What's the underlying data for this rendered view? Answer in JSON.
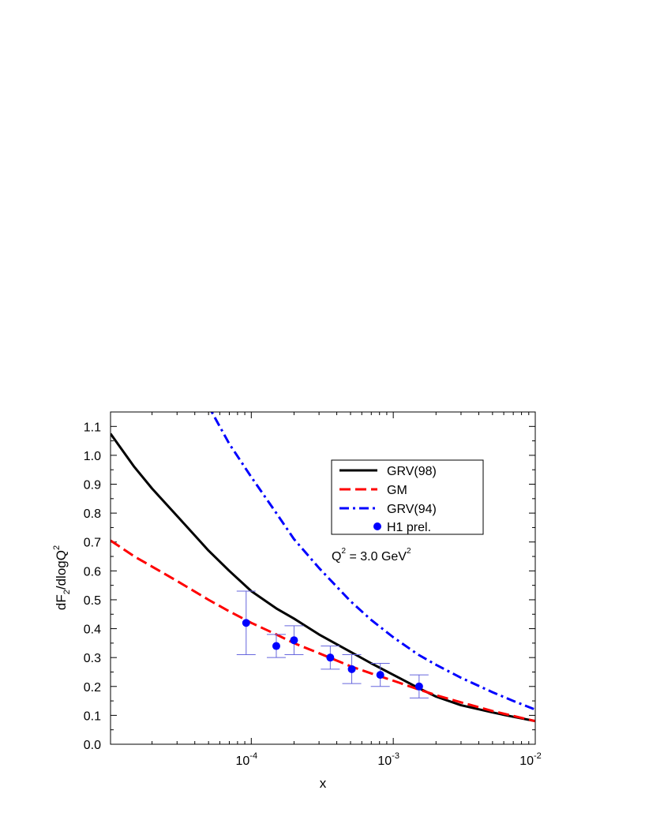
{
  "chart_data": {
    "type": "line",
    "xlabel": "x",
    "ylabel": {
      "base": "dF",
      "sub": "2",
      "mid": "/dlogQ",
      "sup": "2"
    },
    "xscale": "log",
    "xlim": [
      1.02e-05,
      0.01
    ],
    "ylim": [
      0.0,
      1.15
    ],
    "y_ticks": [
      {
        "v": 0.0,
        "label": "0.0"
      },
      {
        "v": 0.1,
        "label": "0.1"
      },
      {
        "v": 0.2,
        "label": "0.2"
      },
      {
        "v": 0.3,
        "label": "0.3"
      },
      {
        "v": 0.4,
        "label": "0.4"
      },
      {
        "v": 0.5,
        "label": "0.5"
      },
      {
        "v": 0.6,
        "label": "0.6"
      },
      {
        "v": 0.7,
        "label": "0.7"
      },
      {
        "v": 0.8,
        "label": "0.8"
      },
      {
        "v": 0.9,
        "label": "0.9"
      },
      {
        "v": 1.0,
        "label": "1.0"
      },
      {
        "v": 1.1,
        "label": "1.1"
      }
    ],
    "x_ticks": [
      {
        "v": 0.0001,
        "base": "10",
        "exp": "-4"
      },
      {
        "v": 0.001,
        "base": "10",
        "exp": "-3"
      },
      {
        "v": 0.01,
        "base": "10",
        "exp": "-2"
      }
    ],
    "annotation": {
      "q": "Q",
      "sup1": "2",
      "middle": " = 3.0 GeV",
      "sup2": "2"
    },
    "legend_position": "top-right",
    "series": [
      {
        "name": "GRV(98)",
        "color": "#000000",
        "style": "solid",
        "x": [
          1.02e-05,
          1.5e-05,
          2e-05,
          3e-05,
          5e-05,
          7e-05,
          0.0001,
          0.00015,
          0.0002,
          0.0003,
          0.0005,
          0.0007,
          0.001,
          0.0015,
          0.002,
          0.003,
          0.005,
          0.007,
          0.01
        ],
        "y": [
          1.075,
          0.96,
          0.885,
          0.79,
          0.67,
          0.6,
          0.53,
          0.47,
          0.435,
          0.38,
          0.32,
          0.28,
          0.24,
          0.195,
          0.165,
          0.135,
          0.11,
          0.095,
          0.08
        ]
      },
      {
        "name": "GM",
        "color": "#ff0000",
        "style": "dashed",
        "x": [
          1.02e-05,
          1.5e-05,
          2e-05,
          3e-05,
          5e-05,
          7e-05,
          0.0001,
          0.00015,
          0.0002,
          0.0003,
          0.0005,
          0.0007,
          0.001,
          0.0015,
          0.002,
          0.003,
          0.005,
          0.007,
          0.01
        ],
        "y": [
          0.705,
          0.65,
          0.615,
          0.565,
          0.5,
          0.46,
          0.42,
          0.38,
          0.35,
          0.315,
          0.27,
          0.245,
          0.22,
          0.19,
          0.17,
          0.145,
          0.115,
          0.098,
          0.08
        ]
      },
      {
        "name": "GRV(94)",
        "color": "#0000ff",
        "style": "dashdot",
        "x": [
          4.7e-05,
          5e-05,
          7e-05,
          0.0001,
          0.00015,
          0.0002,
          0.0003,
          0.0005,
          0.0007,
          0.001,
          0.0015,
          0.002,
          0.003,
          0.005,
          0.007,
          0.01
        ],
        "y": [
          1.19,
          1.17,
          1.04,
          0.925,
          0.8,
          0.71,
          0.61,
          0.495,
          0.43,
          0.37,
          0.31,
          0.275,
          0.23,
          0.18,
          0.15,
          0.12
        ]
      }
    ],
    "points": {
      "name": "H1 prel.",
      "color": "#0000ff",
      "errorbar_color": "#6666dd",
      "x": [
        9.2e-05,
        0.00015,
        0.0002,
        0.00036,
        0.00051,
        0.00081,
        0.00152
      ],
      "y": [
        0.42,
        0.34,
        0.36,
        0.3,
        0.26,
        0.24,
        0.2
      ],
      "ylow": [
        0.31,
        0.3,
        0.31,
        0.26,
        0.21,
        0.2,
        0.16
      ],
      "yhigh": [
        0.53,
        0.38,
        0.41,
        0.34,
        0.31,
        0.28,
        0.24
      ]
    }
  }
}
